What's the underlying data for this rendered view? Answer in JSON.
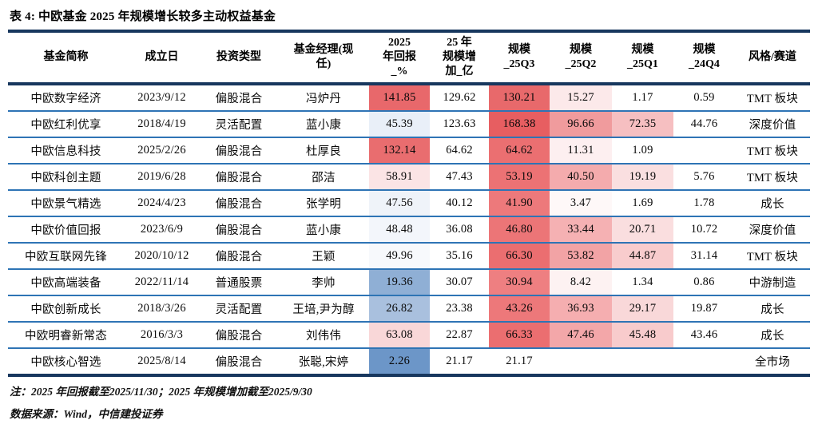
{
  "title": "表 4: 中欧基金 2025 年规模增长较多主动权益基金",
  "colors": {
    "rule_dark_navy": "#17375e",
    "row_separator_blue": "#2e74b5",
    "heat_red_max": "#e75e61",
    "heat_blue_max": "#6c96c8"
  },
  "table": {
    "columns": [
      "基金简称",
      "成立日",
      "投资类型",
      "基金经理(现\n任)",
      "2025\n年回报\n_%",
      "25 年\n规模增\n加_亿",
      "规模\n_25Q3",
      "规模\n_25Q2",
      "规模\n_25Q1",
      "规模\n_24Q4",
      "风格/赛道"
    ],
    "rows": [
      [
        {
          "t": "中欧数字经济"
        },
        {
          "t": "2023/9/12"
        },
        {
          "t": "偏股混合"
        },
        {
          "t": "冯炉丹"
        },
        {
          "t": "141.85",
          "bg": "#e8686b"
        },
        {
          "t": "129.62"
        },
        {
          "t": "130.21",
          "bg": "#e8696b"
        },
        {
          "t": "15.27",
          "bg": "#fce9ea"
        },
        {
          "t": "1.17"
        },
        {
          "t": "0.59"
        },
        {
          "t": "TMT 板块"
        }
      ],
      [
        {
          "t": "中欧红利优享"
        },
        {
          "t": "2018/4/19"
        },
        {
          "t": "灵活配置"
        },
        {
          "t": "蓝小康"
        },
        {
          "t": "45.39",
          "bg": "#e9eff8"
        },
        {
          "t": "123.63"
        },
        {
          "t": "168.38",
          "bg": "#e75e61"
        },
        {
          "t": "96.66",
          "bg": "#f09b9d"
        },
        {
          "t": "72.35",
          "bg": "#f6bfc1"
        },
        {
          "t": "44.76"
        },
        {
          "t": "深度价值"
        }
      ],
      [
        {
          "t": "中欧信息科技"
        },
        {
          "t": "2025/2/26"
        },
        {
          "t": "偏股混合"
        },
        {
          "t": "杜厚良"
        },
        {
          "t": "132.14",
          "bg": "#e96d6f"
        },
        {
          "t": "64.62"
        },
        {
          "t": "64.62",
          "bg": "#eb6f71"
        },
        {
          "t": "11.31",
          "bg": "#fdeff0"
        },
        {
          "t": "1.09"
        },
        {
          "t": ""
        },
        {
          "t": "TMT 板块"
        }
      ],
      [
        {
          "t": "中欧科创主题"
        },
        {
          "t": "2019/6/28"
        },
        {
          "t": "偏股混合"
        },
        {
          "t": "邵洁"
        },
        {
          "t": "58.91",
          "bg": "#fbe4e5"
        },
        {
          "t": "47.43"
        },
        {
          "t": "53.19",
          "bg": "#ec7274"
        },
        {
          "t": "40.50",
          "bg": "#f4abad"
        },
        {
          "t": "19.19",
          "bg": "#fadfe0"
        },
        {
          "t": "5.76"
        },
        {
          "t": "TMT 板块"
        }
      ],
      [
        {
          "t": "中欧景气精选"
        },
        {
          "t": "2024/4/23"
        },
        {
          "t": "偏股混合"
        },
        {
          "t": "张学明"
        },
        {
          "t": "47.56",
          "bg": "#eff3f9"
        },
        {
          "t": "40.12"
        },
        {
          "t": "41.90",
          "bg": "#ed797b"
        },
        {
          "t": "3.47",
          "bg": "#fef8f8"
        },
        {
          "t": "1.69"
        },
        {
          "t": "1.78"
        },
        {
          "t": "成长"
        }
      ],
      [
        {
          "t": "中欧价值回报"
        },
        {
          "t": "2023/6/9"
        },
        {
          "t": "偏股混合"
        },
        {
          "t": "蓝小康"
        },
        {
          "t": "48.48",
          "bg": "#f3f6fb"
        },
        {
          "t": "36.08"
        },
        {
          "t": "46.80",
          "bg": "#ec7577"
        },
        {
          "t": "33.44",
          "bg": "#f5b1b3"
        },
        {
          "t": "20.71",
          "bg": "#fadedf"
        },
        {
          "t": "10.72"
        },
        {
          "t": "深度价值"
        }
      ],
      [
        {
          "t": "中欧互联网先锋"
        },
        {
          "t": "2020/10/12"
        },
        {
          "t": "偏股混合"
        },
        {
          "t": "王颖"
        },
        {
          "t": "49.96",
          "bg": "#f7f9fc"
        },
        {
          "t": "35.16"
        },
        {
          "t": "66.30",
          "bg": "#eb6e70"
        },
        {
          "t": "53.82",
          "bg": "#f2a3a5"
        },
        {
          "t": "44.87",
          "bg": "#f8cccd"
        },
        {
          "t": "31.14"
        },
        {
          "t": "TMT 板块"
        }
      ],
      [
        {
          "t": "中欧高端装备"
        },
        {
          "t": "2022/11/14"
        },
        {
          "t": "普通股票"
        },
        {
          "t": "李帅"
        },
        {
          "t": "19.36",
          "bg": "#8fafd5"
        },
        {
          "t": "30.07"
        },
        {
          "t": "30.94",
          "bg": "#ee7f81"
        },
        {
          "t": "8.42",
          "bg": "#fdf2f2"
        },
        {
          "t": "1.34"
        },
        {
          "t": "0.86"
        },
        {
          "t": "中游制造"
        }
      ],
      [
        {
          "t": "中欧创新成长"
        },
        {
          "t": "2018/3/26"
        },
        {
          "t": "灵活配置"
        },
        {
          "t": "王培,尹为醇"
        },
        {
          "t": "26.82",
          "bg": "#a9c0de"
        },
        {
          "t": "23.38"
        },
        {
          "t": "43.26",
          "bg": "#ed787a"
        },
        {
          "t": "36.93",
          "bg": "#f5aeb0"
        },
        {
          "t": "29.17",
          "bg": "#f9d8d9"
        },
        {
          "t": "19.87"
        },
        {
          "t": "成长"
        }
      ],
      [
        {
          "t": "中欧明睿新常态"
        },
        {
          "t": "2016/3/3"
        },
        {
          "t": "偏股混合"
        },
        {
          "t": "刘伟伟"
        },
        {
          "t": "63.08",
          "bg": "#f9d7d8"
        },
        {
          "t": "22.87"
        },
        {
          "t": "66.33",
          "bg": "#eb6e70"
        },
        {
          "t": "47.46",
          "bg": "#f3a7a9"
        },
        {
          "t": "45.48",
          "bg": "#f8cbcc"
        },
        {
          "t": "43.46"
        },
        {
          "t": "成长"
        }
      ],
      [
        {
          "t": "中欧核心智选"
        },
        {
          "t": "2025/8/14"
        },
        {
          "t": "偏股混合"
        },
        {
          "t": "张聪,宋婷"
        },
        {
          "t": "2.26",
          "bg": "#6c96c8"
        },
        {
          "t": "21.17"
        },
        {
          "t": "21.17"
        },
        {
          "t": ""
        },
        {
          "t": ""
        },
        {
          "t": ""
        },
        {
          "t": "全市场"
        }
      ]
    ]
  },
  "notes": [
    "注：2025 年回报截至2025/11/30；2025 年规模增加截至2025/9/30",
    "数据来源：Wind，中信建投证券"
  ]
}
